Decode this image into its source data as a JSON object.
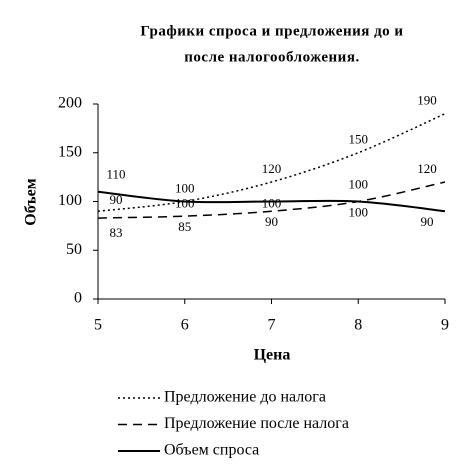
{
  "chart_data": {
    "type": "line",
    "title": [
      "Графики спроса и предложения до и",
      "после налогообложения."
    ],
    "x_label": "Цена",
    "y_label": "Объем",
    "x": [
      5,
      6,
      7,
      8,
      9
    ],
    "series": [
      {
        "name": "Предложение до налога",
        "color": "#000000",
        "style": "dotted",
        "values": [
          90,
          100,
          120,
          150,
          190
        ]
      },
      {
        "name": "Предложение после налога",
        "color": "#000000",
        "style": "dashed",
        "values": [
          83,
          85,
          90,
          100,
          120
        ]
      },
      {
        "name": "Объем спроса",
        "color": "#000000",
        "style": "solid",
        "values": [
          110,
          100,
          100,
          100,
          90
        ]
      }
    ],
    "xlim": [
      5,
      9
    ],
    "xticks": [
      5,
      6,
      7,
      8,
      9
    ],
    "ylim": [
      0,
      200
    ],
    "yticks": [
      0,
      50,
      100,
      150,
      200
    ],
    "grid": false,
    "smooth": true,
    "data_labels": true,
    "legend": "bottom"
  }
}
